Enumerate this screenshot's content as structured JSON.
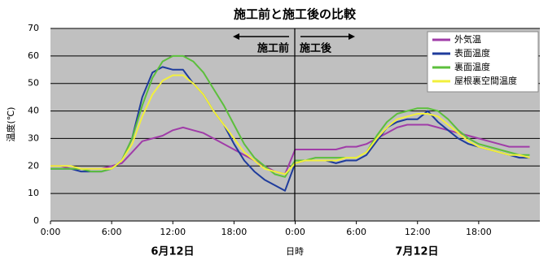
{
  "chart_data": {
    "type": "line",
    "title": "施工前と施工後の比較",
    "x_label": "日時",
    "y_label": "温度(℃)",
    "annotations": [
      "施工前",
      "施工後"
    ],
    "day_labels": [
      "6月12日",
      "7月12日"
    ],
    "x": [
      0,
      1,
      2,
      3,
      4,
      5,
      6,
      7,
      8,
      9,
      10,
      11,
      12,
      13,
      14,
      15,
      16,
      17,
      18,
      19,
      20,
      21,
      22,
      23,
      24,
      25,
      26,
      27,
      28,
      29,
      30,
      31,
      32,
      33,
      34,
      35,
      36,
      37,
      38,
      39,
      40,
      41,
      42,
      43,
      44,
      45,
      46,
      47
    ],
    "series": [
      {
        "name": "外気温",
        "color": "#a03ca8",
        "values": [
          20,
          20,
          19,
          19,
          19,
          19,
          20,
          21,
          25,
          29,
          30,
          31,
          33,
          34,
          33,
          32,
          30,
          28,
          26,
          24,
          22,
          20,
          18,
          17,
          26,
          26,
          26,
          26,
          26,
          27,
          27,
          28,
          30,
          32,
          34,
          35,
          35,
          35,
          34,
          33,
          32,
          31,
          30,
          29,
          28,
          27,
          27,
          27
        ]
      },
      {
        "name": "表面温度",
        "color": "#1f3c9c",
        "values": [
          19,
          19,
          19,
          18,
          18,
          18,
          19,
          22,
          30,
          45,
          54,
          56,
          55,
          55,
          50,
          46,
          40,
          35,
          28,
          22,
          18,
          15,
          13,
          11,
          21,
          22,
          22,
          22,
          21,
          22,
          22,
          24,
          29,
          34,
          36,
          37,
          37,
          40,
          36,
          33,
          30,
          28,
          27,
          26,
          25,
          24,
          23,
          23
        ]
      },
      {
        "name": "裏面温度",
        "color": "#5cbf3c",
        "values": [
          19,
          19,
          19,
          19,
          18,
          18,
          19,
          22,
          30,
          42,
          52,
          58,
          60,
          60,
          58,
          54,
          48,
          42,
          35,
          28,
          23,
          20,
          17,
          16,
          22,
          22,
          23,
          23,
          23,
          23,
          23,
          25,
          31,
          36,
          39,
          40,
          41,
          41,
          40,
          37,
          33,
          30,
          28,
          27,
          26,
          25,
          24,
          24
        ]
      },
      {
        "name": "屋根裏空間温度",
        "color": "#f2f03c",
        "values": [
          20,
          20,
          20,
          19,
          19,
          19,
          19,
          22,
          28,
          38,
          46,
          51,
          53,
          53,
          50,
          46,
          40,
          35,
          30,
          25,
          22,
          19,
          18,
          17,
          21,
          22,
          22,
          22,
          22,
          23,
          23,
          25,
          30,
          34,
          37,
          38,
          39,
          39,
          38,
          35,
          32,
          29,
          27,
          26,
          25,
          24,
          24,
          23
        ]
      }
    ],
    "xlim": [
      0,
      48
    ],
    "xticks": [
      {
        "value": 0,
        "label": "0:00"
      },
      {
        "value": 6,
        "label": "6:00"
      },
      {
        "value": 12,
        "label": "12:00"
      },
      {
        "value": 18,
        "label": "18:00"
      },
      {
        "value": 24,
        "label": "0:00"
      },
      {
        "value": 30,
        "label": "6:00"
      },
      {
        "value": 36,
        "label": "12:00"
      },
      {
        "value": 42,
        "label": "18:00"
      }
    ],
    "ylim": [
      0,
      70
    ],
    "yticks": [
      0,
      10,
      20,
      30,
      40,
      50,
      60,
      70
    ],
    "grid": true
  }
}
